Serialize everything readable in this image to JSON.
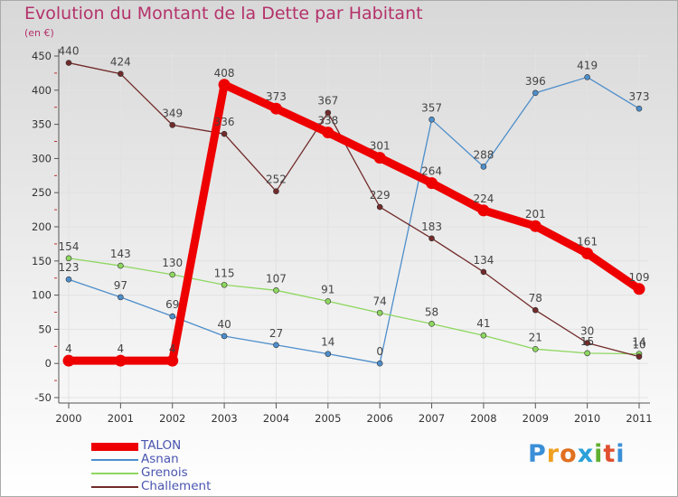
{
  "title": "Evolution du Montant de la Dette par Habitant",
  "unit": "(en €)",
  "logo": {
    "text": "Proxiti",
    "letters": [
      "P",
      "r",
      "o",
      "x",
      "i",
      "t",
      "i"
    ],
    "colors": [
      "#3a8fd8",
      "#f0a020",
      "#e07020",
      "#2aa0d8",
      "#60b030",
      "#e05030",
      "#3a8fd8"
    ]
  },
  "chart_data": {
    "type": "line",
    "title": "Evolution du Montant de la Dette par Habitant",
    "ylabel": "(en €)",
    "xlabel": "",
    "x": [
      "2000",
      "2001",
      "2002",
      "2003",
      "2004",
      "2005",
      "2006",
      "2007",
      "2008",
      "2009",
      "2010",
      "2011"
    ],
    "ylim": [
      -50,
      450
    ],
    "yticks": [
      -50,
      0,
      50,
      100,
      150,
      200,
      250,
      300,
      350,
      400,
      450
    ],
    "grid": true,
    "legend_position": "bottom-left",
    "series": [
      {
        "name": "TALON",
        "color": "#ee0000",
        "emphasis": true,
        "values": [
          4,
          4,
          4,
          408,
          373,
          338,
          301,
          264,
          224,
          201,
          161,
          109
        ]
      },
      {
        "name": "Asnan",
        "color": "#4d8ecb",
        "values": [
          123,
          97,
          69,
          40,
          27,
          14,
          0,
          357,
          288,
          396,
          419,
          373
        ]
      },
      {
        "name": "Grenois",
        "color": "#8ed760",
        "values": [
          154,
          143,
          130,
          115,
          107,
          91,
          74,
          58,
          41,
          21,
          15,
          14
        ]
      },
      {
        "name": "Challement",
        "color": "#722a2a",
        "values": [
          440,
          424,
          349,
          336,
          252,
          367,
          229,
          183,
          134,
          78,
          30,
          10
        ]
      }
    ]
  }
}
